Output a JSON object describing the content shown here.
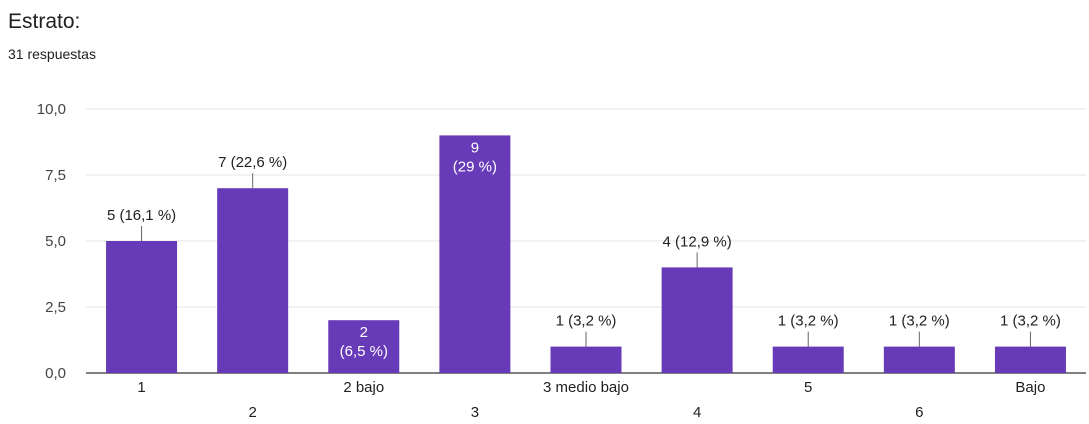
{
  "header": {
    "title": "Estrato:",
    "subtitle": "31 respuestas"
  },
  "chart_data": {
    "type": "bar",
    "title": "Estrato:",
    "subtitle": "31 respuestas",
    "xlabel": "",
    "ylabel": "",
    "ylim": [
      0,
      10
    ],
    "yticks": [
      "0,0",
      "2,5",
      "5,0",
      "7,5",
      "10,0"
    ],
    "grid": true,
    "legend": "none",
    "bar_color": "#673ab7",
    "categories": [
      "1",
      "2",
      "2 bajo",
      "3",
      "3 medio bajo",
      "4",
      "5",
      "6",
      "Bajo"
    ],
    "values": [
      5,
      7,
      2,
      9,
      1,
      4,
      1,
      1,
      1
    ],
    "data_labels": [
      {
        "lines": [
          "5 (16,1 %)"
        ],
        "inside": false
      },
      {
        "lines": [
          "7 (22,6 %)"
        ],
        "inside": false
      },
      {
        "lines": [
          "2",
          "(6,5 %)"
        ],
        "inside": true
      },
      {
        "lines": [
          "9",
          "(29 %)"
        ],
        "inside": true
      },
      {
        "lines": [
          "1 (3,2 %)"
        ],
        "inside": false
      },
      {
        "lines": [
          "4 (12,9 %)"
        ],
        "inside": false
      },
      {
        "lines": [
          "1 (3,2 %)"
        ],
        "inside": false
      },
      {
        "lines": [
          "1 (3,2 %)"
        ],
        "inside": false
      },
      {
        "lines": [
          "1 (3,2 %)"
        ],
        "inside": false
      }
    ]
  }
}
